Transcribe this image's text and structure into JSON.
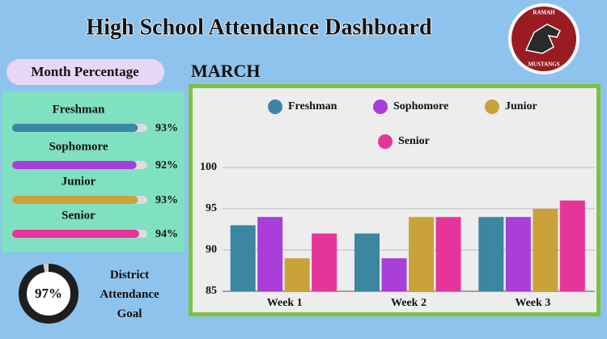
{
  "title": "High School Attendance Dashboard",
  "logo": {
    "top_text": "RAMAH",
    "bottom_text": "MUSTANGS"
  },
  "chart_data": [
    {
      "type": "progress",
      "title": "Month Percentage",
      "categories": [
        "Freshman",
        "Sophomore",
        "Junior",
        "Senior"
      ],
      "values": [
        93,
        92,
        93,
        94
      ],
      "value_labels": [
        "93%",
        "92%",
        "93%",
        "94%"
      ],
      "colors": [
        "#3b86a0",
        "#a93ed8",
        "#c9a23a",
        "#e5359b"
      ],
      "xlim": [
        0,
        100
      ]
    },
    {
      "type": "donut",
      "title": "District Attendance Goal",
      "values": [
        97
      ],
      "value_labels": [
        "97%"
      ],
      "color": "#1e1e1e"
    },
    {
      "type": "bar",
      "title": "MARCH",
      "categories": [
        "Week 1",
        "Week 2",
        "Week 3"
      ],
      "series": [
        {
          "name": "Freshman",
          "color": "#3b86a0",
          "values": [
            93,
            92,
            94
          ]
        },
        {
          "name": "Sophomore",
          "color": "#a93ed8",
          "values": [
            94,
            89,
            94
          ]
        },
        {
          "name": "Junior",
          "color": "#c9a23a",
          "values": [
            89,
            94,
            95
          ]
        },
        {
          "name": "Senior",
          "color": "#e5359b",
          "values": [
            92,
            94,
            96
          ]
        }
      ],
      "ylim": [
        85,
        100
      ],
      "yticks": [
        85,
        90,
        95,
        100
      ],
      "grid": true,
      "legend": "top"
    }
  ]
}
